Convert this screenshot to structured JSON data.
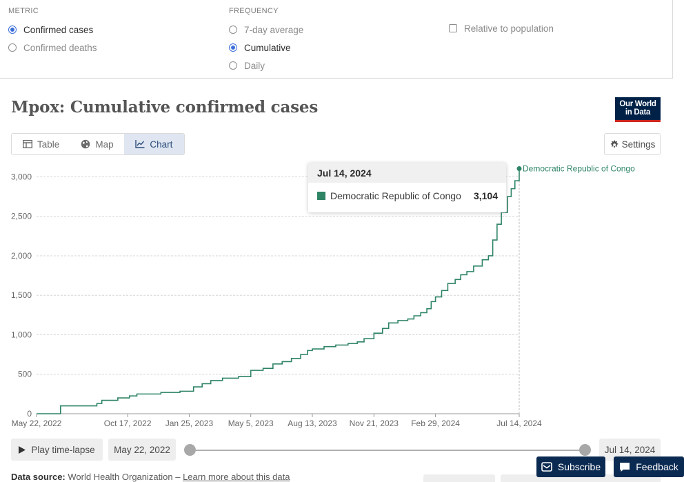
{
  "controls": {
    "metric": {
      "heading": "METRIC",
      "options": [
        {
          "label": "Confirmed cases",
          "selected": true
        },
        {
          "label": "Confirmed deaths",
          "selected": false
        }
      ]
    },
    "frequency": {
      "heading": "FREQUENCY",
      "options": [
        {
          "label": "7-day average",
          "selected": false
        },
        {
          "label": "Cumulative",
          "selected": true
        },
        {
          "label": "Daily",
          "selected": false
        }
      ]
    },
    "relative": {
      "label": "Relative to population",
      "checked": false
    }
  },
  "title": "Mpox: Cumulative confirmed cases",
  "logo": {
    "line1": "Our World",
    "line2": "in Data"
  },
  "tabs": [
    {
      "label": "Table",
      "icon": "table-icon",
      "active": false
    },
    {
      "label": "Map",
      "icon": "globe-icon",
      "active": false
    },
    {
      "label": "Chart",
      "icon": "line-chart-icon",
      "active": true
    }
  ],
  "settings_label": "Settings",
  "tooltip": {
    "date": "Jul 14, 2024",
    "entity": "Democratic Republic of Congo",
    "value": "3,104"
  },
  "timeline": {
    "play_label": "Play time-lapse",
    "start_date": "May 22, 2022",
    "end_date": "Jul 14, 2024"
  },
  "footer": {
    "source_label": "Data source:",
    "source_text": "World Health Organization –",
    "learn_more": "Learn more about this data"
  },
  "subscribe_label": "Subscribe",
  "feedback_label": "Feedback",
  "colors": {
    "series": "#2e8465",
    "accent": "#3b6fd8",
    "brand": "#002147"
  },
  "chart_data": {
    "type": "line",
    "title": "Mpox: Cumulative confirmed cases",
    "xlabel": "",
    "ylabel": "",
    "ylim": [
      0,
      3100
    ],
    "yticks": [
      0,
      500,
      1000,
      1500,
      2000,
      2500,
      3000
    ],
    "ytick_labels": [
      "0",
      "500",
      "1,000",
      "1,500",
      "2,000",
      "2,500",
      "3,000"
    ],
    "xlim": [
      "2022-05-22",
      "2024-07-14"
    ],
    "xticks": [
      "2022-05-22",
      "2022-10-17",
      "2023-01-25",
      "2023-05-05",
      "2023-08-13",
      "2023-11-21",
      "2024-02-29",
      "2024-07-14"
    ],
    "xtick_labels": [
      "May 22, 2022",
      "Oct 17, 2022",
      "Jan 25, 2023",
      "May 5, 2023",
      "Aug 13, 2023",
      "Nov 21, 2023",
      "Feb 29, 2024",
      "Jul 14, 2024"
    ],
    "grid": true,
    "series": [
      {
        "name": "Democratic Republic of Congo",
        "color": "#2e8465",
        "label_at_end": true,
        "points": [
          [
            "2022-05-22",
            0
          ],
          [
            "2022-06-20",
            0
          ],
          [
            "2022-06-30",
            100
          ],
          [
            "2022-08-20",
            100
          ],
          [
            "2022-08-28",
            130
          ],
          [
            "2022-09-05",
            170
          ],
          [
            "2022-10-01",
            200
          ],
          [
            "2022-10-20",
            225
          ],
          [
            "2022-11-01",
            250
          ],
          [
            "2022-12-10",
            270
          ],
          [
            "2023-01-10",
            285
          ],
          [
            "2023-02-01",
            340
          ],
          [
            "2023-02-15",
            380
          ],
          [
            "2023-03-01",
            420
          ],
          [
            "2023-03-20",
            450
          ],
          [
            "2023-04-15",
            470
          ],
          [
            "2023-05-05",
            550
          ],
          [
            "2023-05-25",
            575
          ],
          [
            "2023-06-10",
            630
          ],
          [
            "2023-06-25",
            660
          ],
          [
            "2023-07-10",
            700
          ],
          [
            "2023-07-25",
            750
          ],
          [
            "2023-08-05",
            800
          ],
          [
            "2023-08-13",
            820
          ],
          [
            "2023-09-01",
            850
          ],
          [
            "2023-09-20",
            870
          ],
          [
            "2023-10-10",
            890
          ],
          [
            "2023-10-25",
            910
          ],
          [
            "2023-11-05",
            950
          ],
          [
            "2023-11-21",
            1020
          ],
          [
            "2023-12-05",
            1080
          ],
          [
            "2023-12-15",
            1150
          ],
          [
            "2023-12-30",
            1180
          ],
          [
            "2024-01-15",
            1200
          ],
          [
            "2024-01-25",
            1240
          ],
          [
            "2024-02-05",
            1280
          ],
          [
            "2024-02-15",
            1330
          ],
          [
            "2024-02-22",
            1420
          ],
          [
            "2024-02-29",
            1480
          ],
          [
            "2024-03-10",
            1560
          ],
          [
            "2024-03-20",
            1650
          ],
          [
            "2024-04-01",
            1700
          ],
          [
            "2024-04-10",
            1760
          ],
          [
            "2024-04-20",
            1800
          ],
          [
            "2024-05-01",
            1870
          ],
          [
            "2024-05-15",
            1950
          ],
          [
            "2024-05-25",
            2000
          ],
          [
            "2024-06-01",
            2200
          ],
          [
            "2024-06-08",
            2400
          ],
          [
            "2024-06-15",
            2550
          ],
          [
            "2024-06-25",
            2750
          ],
          [
            "2024-07-01",
            2850
          ],
          [
            "2024-07-07",
            2950
          ],
          [
            "2024-07-14",
            3104
          ]
        ]
      }
    ]
  }
}
